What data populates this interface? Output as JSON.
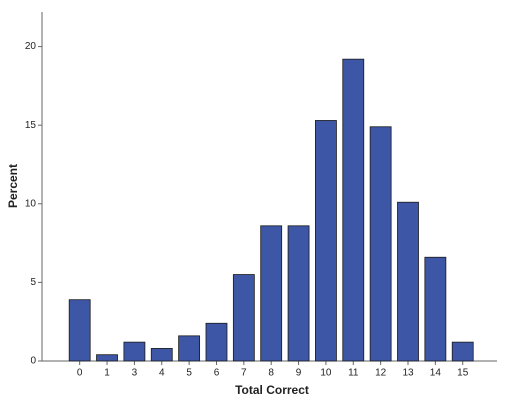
{
  "chart_data": {
    "type": "bar",
    "x_label": "Total Correct",
    "y_label": "Percent",
    "categories": [
      "0",
      "1",
      "3",
      "4",
      "5",
      "6",
      "7",
      "8",
      "9",
      "10",
      "11",
      "12",
      "13",
      "14",
      "15"
    ],
    "values": [
      3.9,
      0.4,
      1.2,
      0.8,
      1.6,
      2.4,
      5.5,
      8.6,
      8.6,
      15.3,
      19.2,
      14.9,
      10.1,
      6.6,
      1.2
    ],
    "color": "#3d56a6",
    "ylim": [
      0,
      22.2
    ],
    "yticks": [
      0,
      5,
      10,
      15,
      20
    ],
    "grid": false
  }
}
